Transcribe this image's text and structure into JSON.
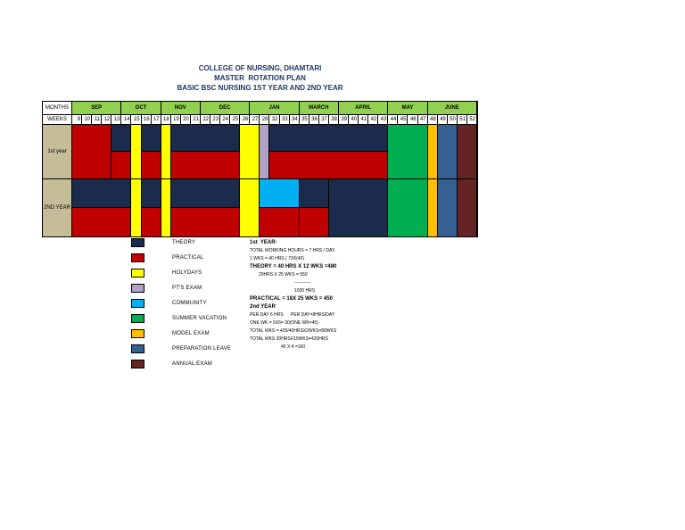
{
  "page": {
    "title_lines": [
      "COLLEGE OF NURSING, DHAMTARI",
      "MASTER  ROTATION PLAN",
      "BASIC BSC NURSING 1ST YEAR AND 2ND YEAR"
    ]
  },
  "colors": {
    "theory": "#1B2B4B",
    "practical": "#C00000",
    "holydays": "#FFFF00",
    "pts_exam": "#B1A0C7",
    "community": "#00B0F0",
    "summer_vacation": "#00B050",
    "model_exam": "#FFC000",
    "preparation_leave": "#376092",
    "annual_exam": "#632423",
    "month_header_bg": "#92D050",
    "row_label_bg": "#C4BD97",
    "title_text": "#1F3864"
  },
  "table": {
    "months_label": "MONTHS",
    "weeks_label": "WEEKS",
    "months": [
      {
        "label": "SEP",
        "span": 5
      },
      {
        "label": "OCT",
        "span": 4
      },
      {
        "label": "NOV",
        "span": 4
      },
      {
        "label": "DEC",
        "span": 5
      },
      {
        "label": "JAN",
        "span": 5
      },
      {
        "label": "MARCH",
        "span": 4
      },
      {
        "label": "APRIL",
        "span": 5
      },
      {
        "label": "MAY",
        "span": 4
      },
      {
        "label": "JUNE",
        "span": 5
      }
    ],
    "weeks": [
      9,
      10,
      11,
      12,
      13,
      14,
      15,
      16,
      17,
      18,
      19,
      20,
      21,
      22,
      23,
      24,
      25,
      26,
      27,
      28,
      32,
      33,
      34,
      35,
      36,
      37,
      38,
      39,
      40,
      41,
      42,
      43,
      44,
      45,
      46,
      47,
      48,
      49,
      50,
      51,
      52
    ],
    "rows": [
      {
        "label": "1st year",
        "blocks": [
          {
            "span": 4,
            "top": "practical",
            "bottom": "practical"
          },
          {
            "span": 2,
            "top": "theory",
            "bottom": "practical"
          },
          {
            "span": 1,
            "top": "holydays",
            "bottom": "holydays"
          },
          {
            "span": 2,
            "top": "theory",
            "bottom": "practical"
          },
          {
            "span": 1,
            "top": "holydays",
            "bottom": "holydays"
          },
          {
            "span": 7,
            "top": "theory",
            "bottom": "practical"
          },
          {
            "span": 2,
            "top": "holydays",
            "bottom": "holydays"
          },
          {
            "span": 1,
            "top": "pts_exam",
            "bottom": "pts_exam"
          },
          {
            "span": 12,
            "top": "theory",
            "bottom": "practical"
          },
          {
            "span": 4,
            "top": "summer_vacation",
            "bottom": "summer_vacation"
          },
          {
            "span": 1,
            "top": "model_exam",
            "bottom": "model_exam"
          },
          {
            "span": 2,
            "top": "preparation_leave",
            "bottom": "preparation_leave"
          },
          {
            "span": 2,
            "top": "annual_exam",
            "bottom": "annual_exam"
          }
        ]
      },
      {
        "label": "2ND YEAR",
        "blocks": [
          {
            "span": 6,
            "top": "theory",
            "bottom": "practical"
          },
          {
            "span": 1,
            "top": "holydays",
            "bottom": "holydays"
          },
          {
            "span": 2,
            "top": "theory",
            "bottom": "practical"
          },
          {
            "span": 1,
            "top": "holydays",
            "bottom": "holydays"
          },
          {
            "span": 7,
            "top": "theory",
            "bottom": "practical"
          },
          {
            "span": 2,
            "top": "holydays",
            "bottom": "holydays"
          },
          {
            "span": 4,
            "top": "community",
            "bottom": "practical"
          },
          {
            "span": 3,
            "top": "theory",
            "bottom": "practical"
          },
          {
            "span": 6,
            "top": "theory",
            "bottom": "theory"
          },
          {
            "span": 4,
            "top": "summer_vacation",
            "bottom": "summer_vacation"
          },
          {
            "span": 1,
            "top": "model_exam",
            "bottom": "model_exam"
          },
          {
            "span": 2,
            "top": "preparation_leave",
            "bottom": "preparation_leave"
          },
          {
            "span": 2,
            "top": "annual_exam",
            "bottom": "annual_exam"
          }
        ]
      }
    ]
  },
  "legend": [
    {
      "label": "THEORY",
      "color": "theory"
    },
    {
      "label": "PRACTICAL",
      "color": "practical"
    },
    {
      "label": "HOLYDAYS",
      "color": "holydays"
    },
    {
      "label": "PT'S EXAM",
      "color": "pts_exam"
    },
    {
      "label": "COMMUNITY",
      "color": "community"
    },
    {
      "label": "SUMMER VACATION",
      "color": "summer_vacation"
    },
    {
      "label": "MODEL EXAM",
      "color": "model_exam"
    },
    {
      "label": "PREPARATION LEAVE",
      "color": "preparation_leave"
    },
    {
      "label": "ANNUAL EXAM",
      "color": "annual_exam"
    }
  ],
  "notes": {
    "lines": [
      {
        "text": "1st  YEAR-",
        "bold": true,
        "indent": 0
      },
      {
        "text": "TOTAL WORKING HOURS = 7 HRS / DAY.",
        "bold": false,
        "indent": 0
      },
      {
        "text": "1 WKS = 40 HRS ( 7X5(40)",
        "bold": false,
        "indent": 0
      },
      {
        "text": "THEORY = 40 HRS X 12 WKS =480",
        "bold": true,
        "indent": 0
      },
      {
        "text": "20HRS X 25 WKS = 550",
        "bold": false,
        "indent": 1
      },
      {
        "text": "-----------",
        "bold": false,
        "indent": 3
      },
      {
        "text": "1030 HRS",
        "bold": false,
        "indent": 3
      },
      {
        "text": "PRACTICAL = 18X 25 WKS = 450",
        "bold": true,
        "indent": 0
      },
      {
        "text": "2nd YEAR",
        "bold": true,
        "indent": 0
      },
      {
        "text": "PER DAY 6 HRS      PER DAY=8HRS/DAY",
        "bold": false,
        "indent": 0
      },
      {
        "text": "ONE WK = 5X6= 30(ONE WK=45)",
        "bold": false,
        "indent": 0
      },
      {
        "text": "TOTAL WKS = 425/40HRSX2WKS=80WKS",
        "bold": false,
        "indent": 0
      },
      {
        "text": "TOTAL WKS 20HRSX15WKS=420HRS",
        "bold": false,
        "indent": 0
      },
      {
        "text": "40 X 4 =160",
        "bold": false,
        "indent": 2
      }
    ]
  }
}
